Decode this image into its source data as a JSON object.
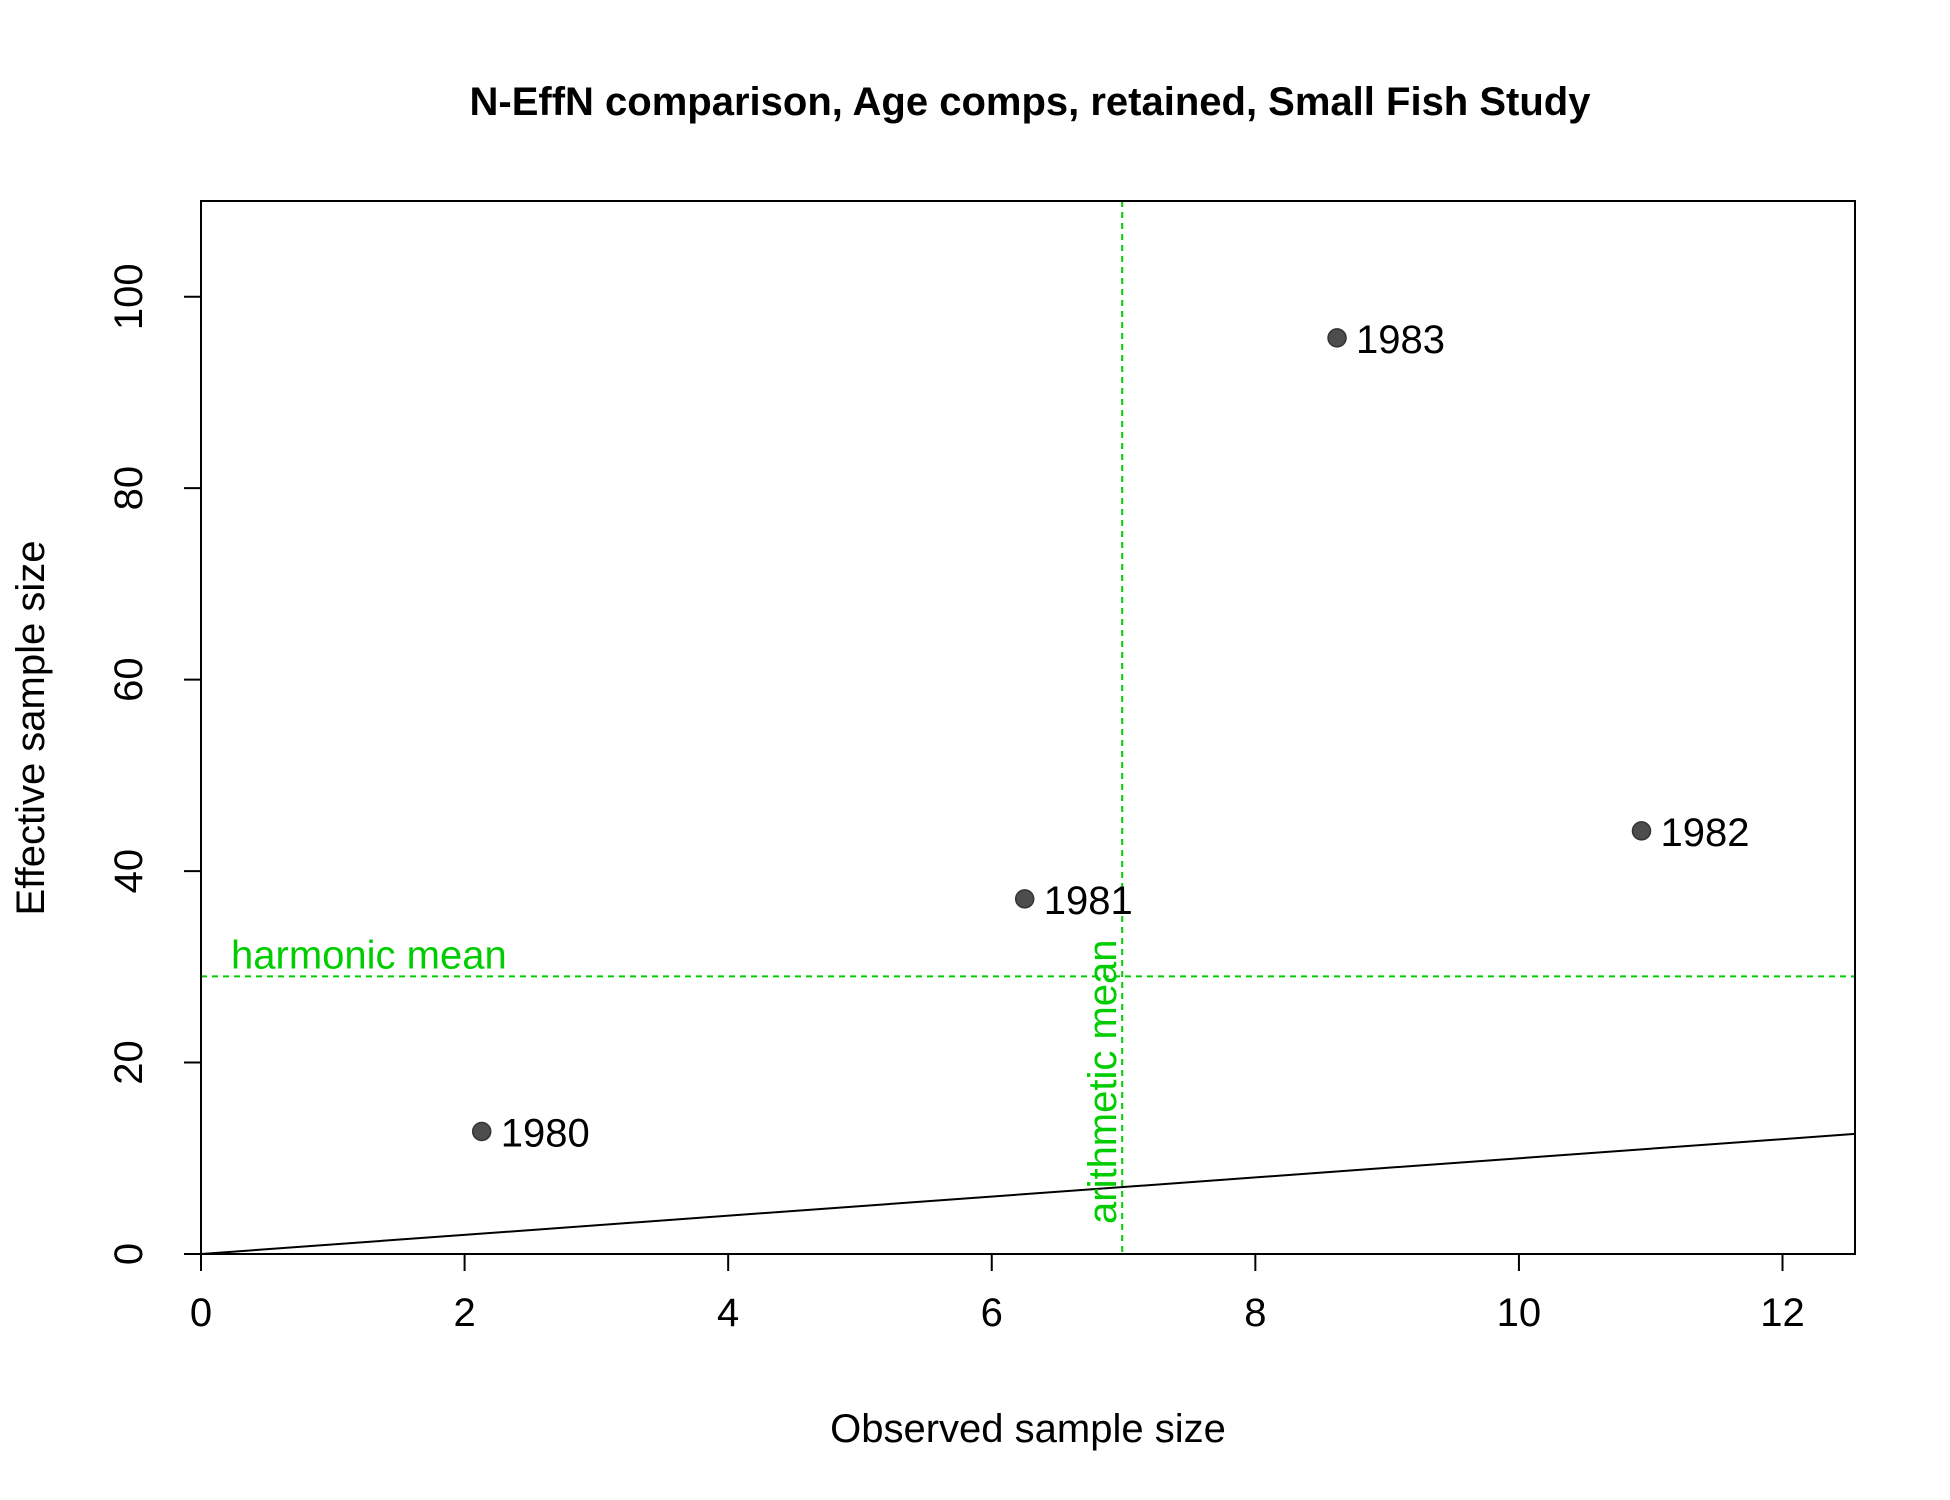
{
  "chart_data": {
    "type": "scatter",
    "title": "N-EffN comparison, Age comps, retained, Small Fish Study",
    "xlabel": "Observed sample size",
    "ylabel": "Effective sample size",
    "xlim": [
      0,
      12.55
    ],
    "ylim": [
      0,
      110
    ],
    "x_ticks": [
      0,
      2,
      4,
      6,
      8,
      10,
      12
    ],
    "y_ticks": [
      0,
      20,
      40,
      60,
      80,
      100
    ],
    "grid": false,
    "points": [
      {
        "x": 2.13,
        "y": 12.8,
        "label": "1980"
      },
      {
        "x": 6.25,
        "y": 37.1,
        "label": "1981"
      },
      {
        "x": 10.93,
        "y": 44.2,
        "label": "1982"
      },
      {
        "x": 8.62,
        "y": 95.7,
        "label": "1983"
      }
    ],
    "reference_lines": {
      "one_to_one": {
        "slope": 1,
        "intercept": 0,
        "color": "#000000"
      },
      "harmonic_mean": {
        "orientation": "horizontal",
        "value": 29.0,
        "label": "harmonic mean",
        "color": "#00cd00"
      },
      "arithmetic_mean": {
        "orientation": "vertical",
        "value": 6.99,
        "label": "arithmetic mean",
        "color": "#00cd00"
      }
    },
    "point_color": "#4d4d4d"
  }
}
